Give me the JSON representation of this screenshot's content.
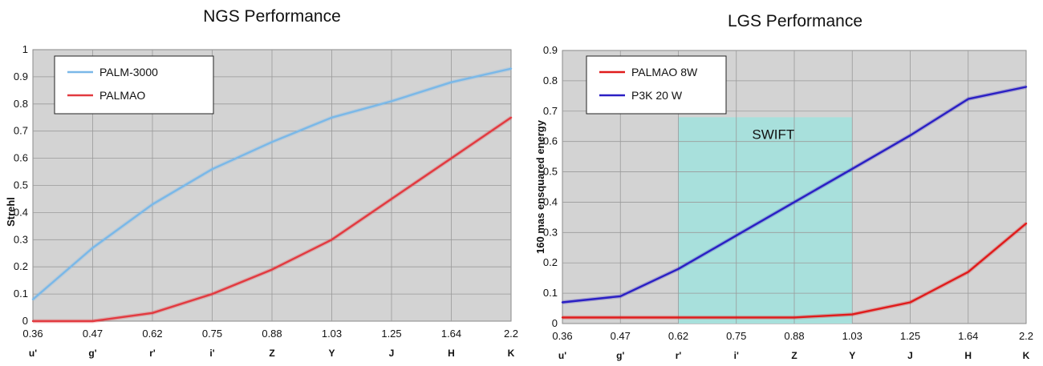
{
  "chart_data": [
    {
      "type": "line",
      "title": "NGS Performance",
      "ylabel": "Strehl",
      "xlabel": "",
      "ylim": [
        0,
        1
      ],
      "yticks": [
        0,
        0.1,
        0.2,
        0.3,
        0.4,
        0.5,
        0.6,
        0.7,
        0.8,
        0.9,
        1
      ],
      "ytick_labels": [
        "0",
        "0.1",
        "0.2",
        "0.3",
        "0.4",
        "0.5",
        "0.6",
        "0.7",
        "0.8",
        "0.9",
        "1"
      ],
      "categories": [
        "0.36",
        "0.47",
        "0.62",
        "0.75",
        "0.88",
        "1.03",
        "1.25",
        "1.64",
        "2.2"
      ],
      "bands": [
        "u'",
        "g'",
        "r'",
        "i'",
        "Z",
        "Y",
        "J",
        "H",
        "K"
      ],
      "grid": true,
      "background": "#d3d3d3",
      "legend_position": "top-left",
      "series": [
        {
          "name": "PALM-3000",
          "color": "#7ab8e8",
          "values": [
            0.08,
            0.27,
            0.43,
            0.56,
            0.66,
            0.75,
            0.81,
            0.88,
            0.93
          ]
        },
        {
          "name": "PALMAO",
          "color": "#e23a40",
          "values": [
            0,
            0,
            0.03,
            0.1,
            0.19,
            0.3,
            0.45,
            0.6,
            0.75
          ]
        }
      ]
    },
    {
      "type": "line",
      "title": "LGS Performance",
      "ylabel": "160 mas ensquared energy",
      "xlabel": "",
      "ylim": [
        0,
        0.9
      ],
      "yticks": [
        0,
        0.1,
        0.2,
        0.3,
        0.4,
        0.5,
        0.6,
        0.7,
        0.8,
        0.9
      ],
      "ytick_labels": [
        "0",
        "0.1",
        "0.2",
        "0.3",
        "0.4",
        "0.5",
        "0.6",
        "0.7",
        "0.8",
        "0.9"
      ],
      "categories": [
        "0.36",
        "0.47",
        "0.62",
        "0.75",
        "0.88",
        "1.03",
        "1.25",
        "1.64",
        "2.2"
      ],
      "bands": [
        "u'",
        "g'",
        "r'",
        "i'",
        "Z",
        "Y",
        "J",
        "H",
        "K"
      ],
      "grid": true,
      "background": "#d3d3d3",
      "legend_position": "top-left",
      "series": [
        {
          "name": "PALMAO 8W",
          "color": "#e01b1b",
          "values": [
            0.02,
            0.02,
            0.02,
            0.02,
            0.02,
            0.03,
            0.07,
            0.17,
            0.33
          ]
        },
        {
          "name": "P3K 20 W",
          "color": "#2a1fc4",
          "values": [
            0.07,
            0.09,
            0.18,
            0.29,
            0.4,
            0.51,
            0.62,
            0.74,
            0.78
          ]
        }
      ],
      "annotation": {
        "text": "SWIFT",
        "from_category": "0.62",
        "to_category": "1.03",
        "y_top": 0.68,
        "color": "#a8e0dc"
      }
    }
  ]
}
